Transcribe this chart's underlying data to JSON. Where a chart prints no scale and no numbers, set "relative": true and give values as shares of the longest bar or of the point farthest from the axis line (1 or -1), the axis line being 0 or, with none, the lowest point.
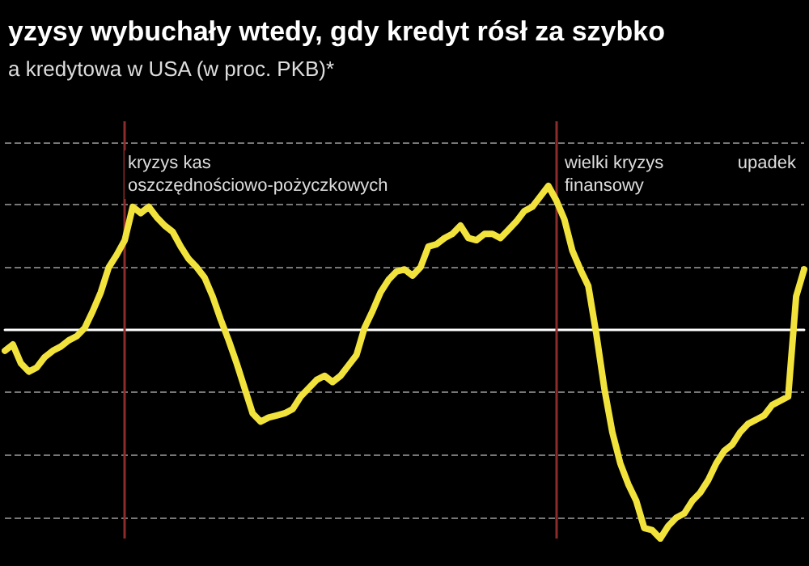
{
  "chart_data": {
    "type": "line",
    "title": "yzysy wybuchały wtedy, gdy kredyt rósł za szybko",
    "subtitle": "a kredytowa w USA (w proc. PKB)*",
    "relative": true,
    "grid": "y",
    "marker": "none",
    "line_style": "solid",
    "categories": [
      null,
      null,
      null,
      null,
      null,
      null,
      null,
      null,
      null,
      null,
      null,
      null,
      null,
      null,
      null,
      null,
      null,
      null,
      null,
      null,
      null,
      null,
      null,
      null,
      null,
      null,
      null,
      null,
      null,
      null,
      null,
      null,
      null,
      null,
      null,
      null,
      null,
      null,
      null,
      null,
      null,
      null,
      null,
      null,
      null,
      null,
      null,
      null,
      null,
      null,
      null,
      null,
      null,
      null,
      null,
      null,
      null,
      null,
      null,
      null,
      null,
      null,
      null,
      null,
      null,
      null,
      null,
      null,
      null,
      null,
      null,
      null,
      null,
      null,
      null,
      null,
      null,
      null,
      null,
      null,
      null,
      null,
      null,
      null,
      null,
      null,
      null,
      null,
      null,
      null,
      null,
      null,
      null,
      null,
      null,
      null,
      null,
      null,
      null,
      null,
      null
    ],
    "series": [
      {
        "color": "#f2e33c",
        "values": [
          -0.1,
          -0.07,
          -0.16,
          -0.2,
          -0.18,
          -0.13,
          -0.1,
          -0.08,
          -0.05,
          -0.03,
          0.01,
          0.09,
          0.18,
          0.3,
          0.36,
          0.43,
          0.59,
          0.56,
          0.59,
          0.54,
          0.5,
          0.47,
          0.4,
          0.34,
          0.3,
          0.25,
          0.16,
          0.05,
          -0.05,
          -0.16,
          -0.28,
          -0.4,
          -0.44,
          -0.42,
          -0.41,
          -0.4,
          -0.38,
          -0.32,
          -0.28,
          -0.24,
          -0.22,
          -0.25,
          -0.22,
          -0.17,
          -0.12,
          0.01,
          0.09,
          0.18,
          0.24,
          0.28,
          0.29,
          0.26,
          0.3,
          0.4,
          0.41,
          0.44,
          0.46,
          0.5,
          0.44,
          0.43,
          0.46,
          0.46,
          0.44,
          0.48,
          0.52,
          0.57,
          0.59,
          0.64,
          0.69,
          0.62,
          0.53,
          0.38,
          0.29,
          0.21,
          -0.02,
          -0.28,
          -0.49,
          -0.64,
          -0.74,
          -0.82,
          -0.95,
          -0.96,
          -1,
          -0.94,
          -0.9,
          -0.88,
          -0.82,
          -0.78,
          -0.72,
          -0.64,
          -0.58,
          -0.55,
          -0.49,
          -0.45,
          -0.43,
          -0.41,
          -0.36,
          -0.34,
          -0.32,
          0.16,
          0.29
        ]
      }
    ],
    "annotations": [
      "kryzys kas\noszczędnościowo-pożyczkowych",
      "wielki kryzys\nfinansowy",
      "upadek"
    ]
  }
}
